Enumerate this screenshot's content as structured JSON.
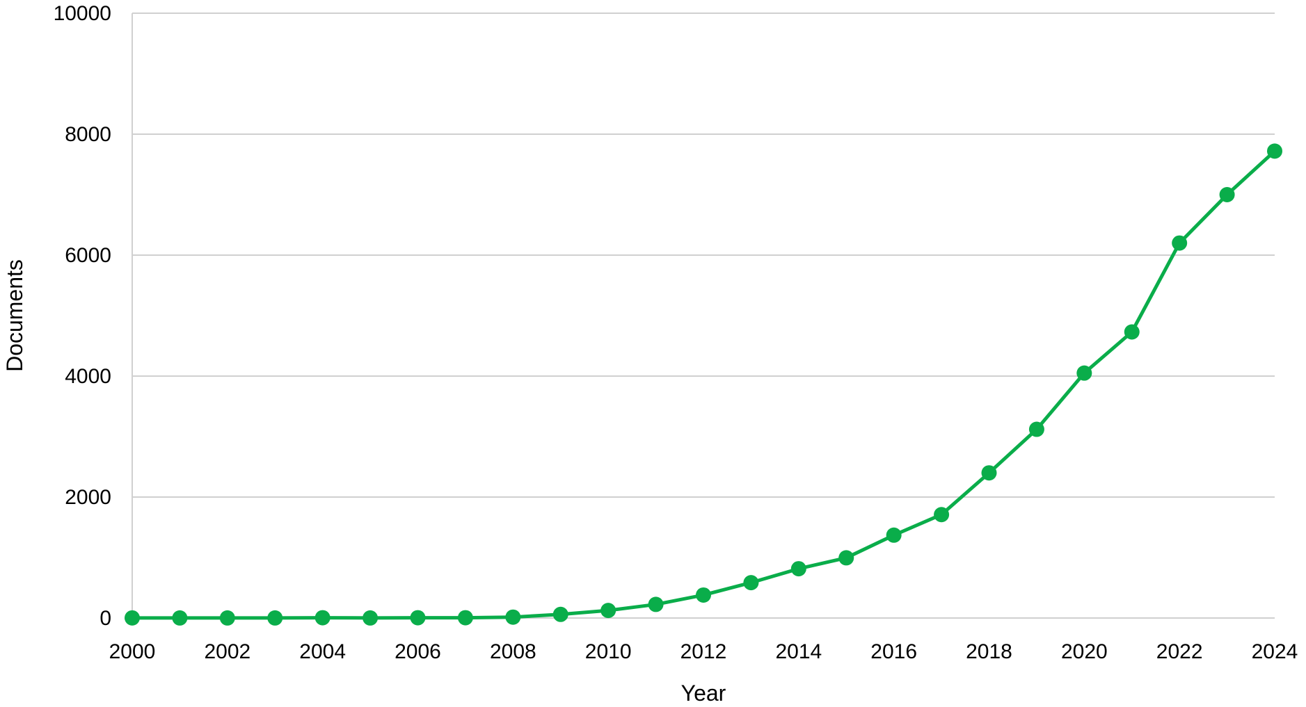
{
  "colors": {
    "series": "#0aad4a",
    "grid": "#d0d0d0",
    "text": "#000000"
  },
  "chart_data": {
    "type": "line",
    "title": "",
    "xlabel": "Year",
    "ylabel": "Documents",
    "xlim": [
      2000,
      2024
    ],
    "ylim": [
      0,
      10000
    ],
    "x_ticks": [
      2000,
      2002,
      2004,
      2006,
      2008,
      2010,
      2012,
      2014,
      2016,
      2018,
      2020,
      2022,
      2024
    ],
    "y_ticks": [
      0,
      2000,
      4000,
      6000,
      8000,
      10000
    ],
    "grid": "horizontal",
    "legend": "none",
    "x": [
      2000,
      2001,
      2002,
      2003,
      2004,
      2005,
      2006,
      2007,
      2008,
      2009,
      2010,
      2011,
      2012,
      2013,
      2014,
      2015,
      2016,
      2017,
      2018,
      2019,
      2020,
      2021,
      2022,
      2023,
      2024
    ],
    "series": [
      {
        "values": [
          2,
          1,
          1,
          1,
          5,
          1,
          5,
          5,
          15,
          60,
          125,
          225,
          380,
          585,
          815,
          995,
          1370,
          1710,
          2400,
          3120,
          4050,
          4730,
          6200,
          7000,
          7720
        ]
      }
    ]
  }
}
